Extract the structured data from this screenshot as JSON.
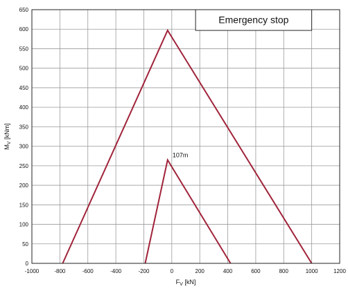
{
  "chart_data": {
    "type": "line",
    "title": "Emergency stop",
    "xlabel": "F",
    "xlabel_sub": "V",
    "xlabel_unit": " [kN]",
    "ylabel": "M",
    "ylabel_sub": "V",
    "ylabel_unit": " [kNm]",
    "xlim": [
      -1000,
      1200
    ],
    "ylim": [
      0,
      650
    ],
    "xticks": [
      -1000,
      -800,
      -600,
      -400,
      -200,
      0,
      200,
      400,
      600,
      800,
      1000,
      1200
    ],
    "yticks": [
      0,
      50,
      100,
      150,
      200,
      250,
      300,
      350,
      400,
      450,
      500,
      550,
      600,
      650
    ],
    "grid": true,
    "color": "#a0233a",
    "series": [
      {
        "x": [
          -780,
          -30,
          1000
        ],
        "y": [
          0,
          597,
          0
        ]
      },
      {
        "x": [
          -190,
          -30,
          420
        ],
        "y": [
          0,
          265,
          0
        ]
      }
    ],
    "annotations": [
      {
        "text": "107m",
        "x": 5,
        "y": 272
      }
    ]
  }
}
